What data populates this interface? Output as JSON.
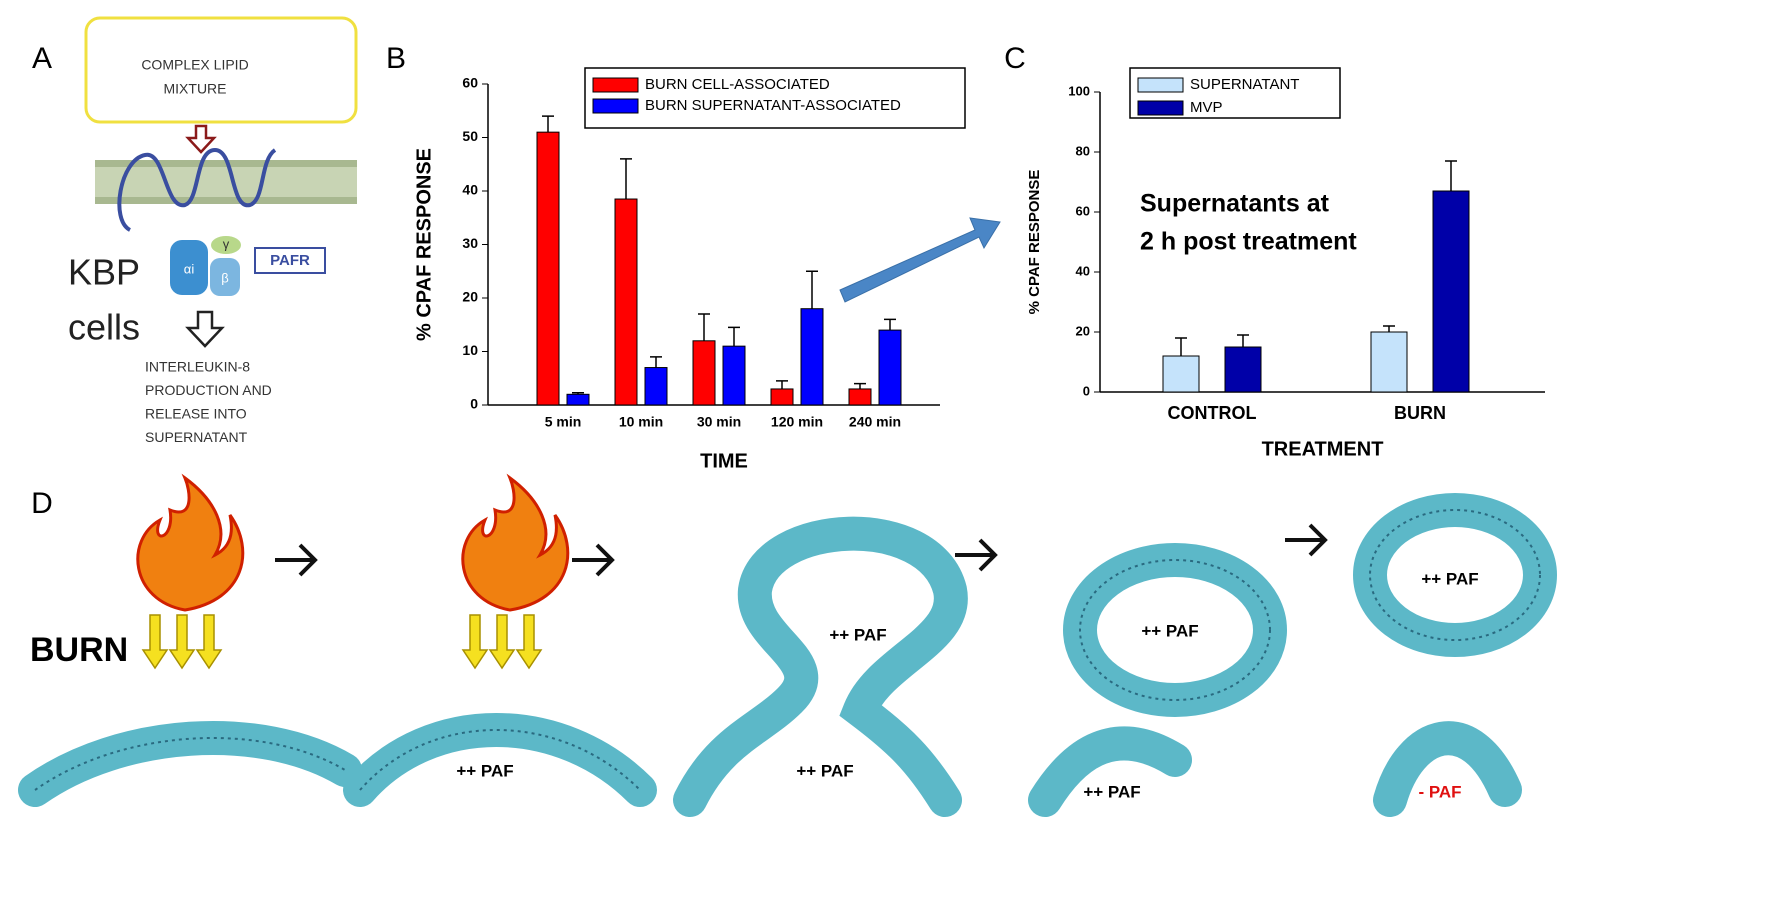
{
  "panel_labels": [
    "A",
    "B",
    "C",
    "D"
  ],
  "panel_a": {
    "box_text": [
      "COMPLEX LIPID",
      "MIXTURE"
    ],
    "cell_label": [
      "KBP",
      "cells"
    ],
    "receptor": "PAFR",
    "subunits": [
      "αi",
      "β",
      "γ"
    ],
    "outcome": [
      "INTERLEUKIN-8",
      "PRODUCTION AND",
      "RELEASE INTO",
      "SUPERNATANT"
    ]
  },
  "chart_data": [
    {
      "type": "bar",
      "ylabel": "% CPAF RESPONSE",
      "xlabel": "TIME",
      "categories": [
        "5 min",
        "10 min",
        "30 min",
        "120 min",
        "240 min"
      ],
      "series": [
        {
          "name": "BURN CELL-ASSOCIATED",
          "color": "#ff0000",
          "values": [
            51,
            38.5,
            12,
            3,
            3
          ],
          "errors": [
            3,
            7.5,
            5,
            1.5,
            1
          ]
        },
        {
          "name": "BURN SUPERNATANT-ASSOCIATED",
          "color": "#0000ff",
          "values": [
            2,
            7,
            11,
            18,
            14
          ],
          "errors": [
            0.3,
            2,
            3.5,
            7,
            2
          ]
        }
      ],
      "ylim": [
        0,
        60
      ],
      "yticks": [
        0,
        10,
        20,
        30,
        40,
        50,
        60
      ],
      "legend": "top"
    },
    {
      "type": "bar",
      "ylabel": "% CPAF RESPONSE",
      "xlabel": "TREATMENT",
      "annotation": [
        "Supernatants at",
        "2 h post treatment"
      ],
      "categories": [
        "CONTROL",
        "BURN"
      ],
      "series": [
        {
          "name": "SUPERNATANT",
          "color": "#c5e3fb",
          "values": [
            12,
            20
          ],
          "errors": [
            6,
            2
          ]
        },
        {
          "name": "MVP",
          "color": "#0000a8",
          "values": [
            15,
            67
          ],
          "errors": [
            4,
            10
          ]
        }
      ],
      "ylim": [
        0,
        100
      ],
      "yticks": [
        0,
        20,
        40,
        60,
        80,
        100
      ],
      "legend": "top left"
    }
  ],
  "panel_d": {
    "burn_label": "BURN",
    "paf_high": [
      "++ PAF",
      "++ PAF",
      "++ PAF",
      "++ PAF",
      "++ PAF",
      "++ PAF"
    ],
    "paf_low": "- PAF"
  }
}
